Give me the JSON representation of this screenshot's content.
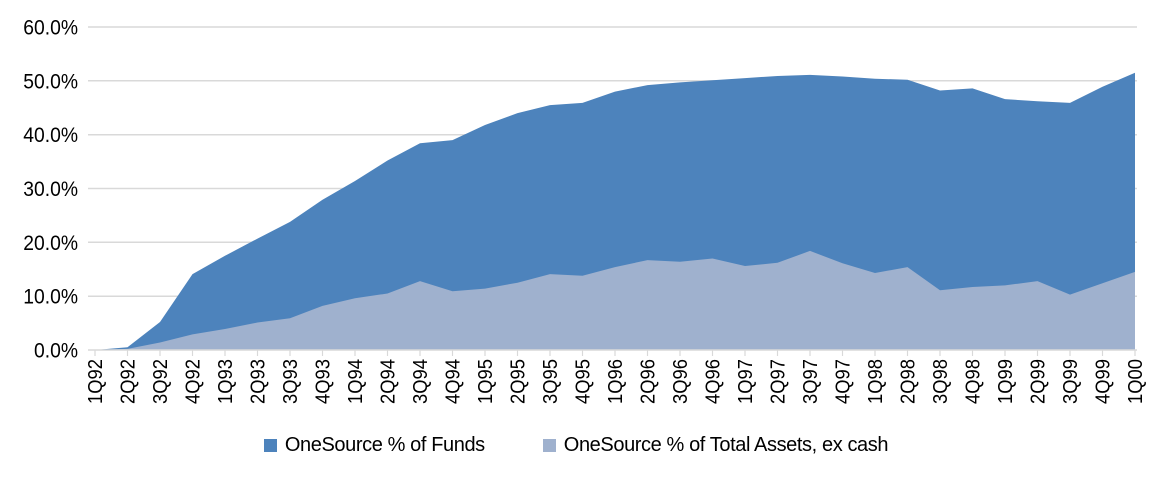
{
  "chart_data": {
    "type": "area",
    "title": "",
    "xlabel": "",
    "ylabel": "",
    "categories": [
      "1Q92",
      "2Q92",
      "3Q92",
      "4Q92",
      "1Q93",
      "2Q93",
      "3Q93",
      "4Q93",
      "1Q94",
      "2Q94",
      "3Q94",
      "4Q94",
      "1Q95",
      "2Q95",
      "3Q95",
      "4Q95",
      "1Q96",
      "2Q96",
      "3Q96",
      "4Q96",
      "1Q97",
      "2Q97",
      "3Q97",
      "4Q97",
      "1Q98",
      "2Q98",
      "3Q98",
      "4Q98",
      "1Q99",
      "2Q99",
      "3Q99",
      "4Q99",
      "1Q00"
    ],
    "series": [
      {
        "name": "OneSource % of Funds",
        "color": "#4D83BC",
        "values": [
          0.0,
          0.5,
          5.2,
          14.1,
          17.5,
          20.7,
          23.8,
          27.9,
          31.4,
          35.2,
          38.4,
          39.0,
          41.8,
          44.0,
          45.5,
          45.9,
          48.0,
          49.2,
          49.7,
          50.1,
          50.5,
          50.9,
          51.1,
          50.8,
          50.4,
          50.2,
          48.2,
          48.6,
          46.6,
          46.2,
          45.9,
          48.9,
          51.5
        ]
      },
      {
        "name": "OneSource % of Total Assets, ex cash",
        "color": "#9FB1CE",
        "values": [
          0.0,
          0.2,
          1.4,
          2.9,
          3.9,
          5.1,
          5.9,
          8.2,
          9.6,
          10.5,
          12.8,
          10.9,
          11.4,
          12.5,
          14.1,
          13.8,
          15.4,
          16.7,
          16.4,
          17.0,
          15.6,
          16.2,
          18.4,
          16.1,
          14.3,
          15.4,
          11.1,
          11.7,
          12.0,
          12.8,
          10.3,
          12.4,
          14.5
        ]
      }
    ],
    "ylim": [
      0,
      60
    ],
    "y_tick_step": 10,
    "y_ticks": [
      "0.0%",
      "10.0%",
      "20.0%",
      "30.0%",
      "40.0%",
      "50.0%",
      "60.0%"
    ],
    "grid": true,
    "legend_position": "bottom"
  },
  "colors": {
    "gridline": "#D9D9D9",
    "axis": "#D9D9D9",
    "text": "#000000",
    "background": "#FFFFFF"
  }
}
